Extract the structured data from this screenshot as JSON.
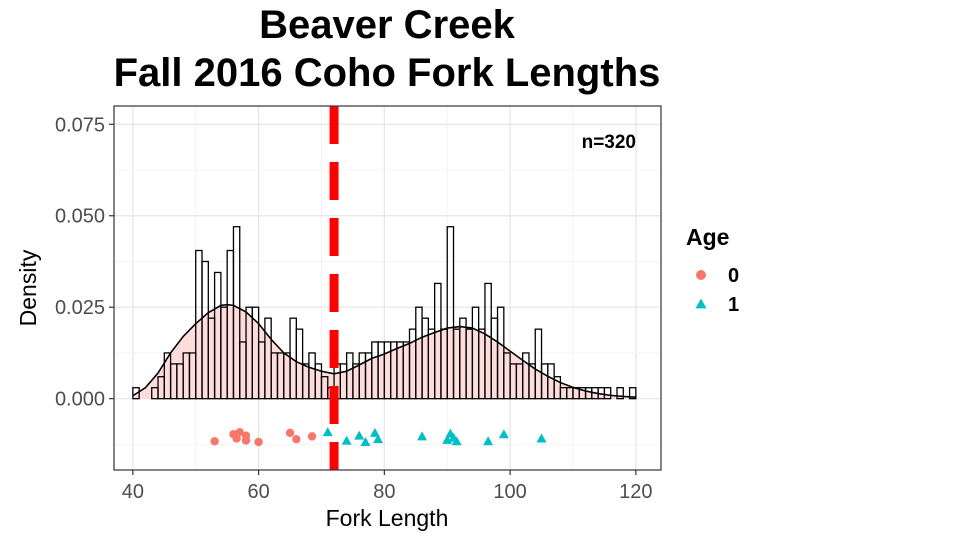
{
  "chart_data": {
    "type": "histogram",
    "title": [
      "Beaver Creek",
      "Fall 2016 Coho Fork Lengths"
    ],
    "xlabel": "Fork Length",
    "ylabel": "Density",
    "xlim": [
      37,
      124
    ],
    "ylim": [
      -0.0195,
      0.08
    ],
    "x_ticks": [
      40,
      60,
      80,
      100,
      120
    ],
    "x_tick_labels": [
      "40",
      "60",
      "80",
      "100",
      "120"
    ],
    "y_ticks": [
      0,
      0.025,
      0.05,
      0.075
    ],
    "y_tick_labels": [
      "0.000",
      "0.025",
      "0.050",
      "0.075"
    ],
    "grid": true,
    "bin_width": 1,
    "histogram": {
      "bin_starts": [
        40,
        41,
        42,
        43,
        44,
        45,
        46,
        47,
        48,
        49,
        50,
        51,
        52,
        53,
        54,
        55,
        56,
        57,
        58,
        59,
        60,
        61,
        62,
        63,
        64,
        65,
        66,
        67,
        68,
        69,
        70,
        71,
        72,
        73,
        74,
        75,
        76,
        77,
        78,
        79,
        80,
        81,
        82,
        83,
        84,
        85,
        86,
        87,
        88,
        89,
        90,
        91,
        92,
        93,
        94,
        95,
        96,
        97,
        98,
        99,
        100,
        101,
        102,
        103,
        104,
        105,
        106,
        107,
        108,
        109,
        110,
        111,
        112,
        113,
        114,
        115,
        116,
        117,
        118,
        119
      ],
      "densities": [
        0.003,
        0,
        0,
        0.003,
        0.006,
        0.0125,
        0.0095,
        0.0095,
        0.0125,
        0.0125,
        0.0405,
        0.0375,
        0.022,
        0.0345,
        0.025,
        0.0405,
        0.047,
        0.0155,
        0.025,
        0.025,
        0.0155,
        0.022,
        0.0125,
        0.0125,
        0.0125,
        0.022,
        0.019,
        0.0095,
        0.0125,
        0.0095,
        0.006,
        0.003,
        0.0095,
        0.0095,
        0.0125,
        0.0095,
        0.0125,
        0.0125,
        0.0155,
        0.0155,
        0.0155,
        0.0155,
        0.0155,
        0.0155,
        0.019,
        0.025,
        0.022,
        0.019,
        0.0315,
        0.019,
        0.047,
        0.019,
        0.022,
        0.019,
        0.025,
        0.019,
        0.0315,
        0.022,
        0.025,
        0.0125,
        0.0095,
        0.0095,
        0.0125,
        0.0095,
        0.019,
        0.0095,
        0.0095,
        0.006,
        0.003,
        0.003,
        0.003,
        0.003,
        0.003,
        0.003,
        0.003,
        0.003,
        0.0,
        0.003,
        0.0,
        0.003
      ]
    },
    "density_curve": {
      "x": [
        40,
        42,
        44,
        46,
        48,
        50,
        52,
        54,
        55,
        56,
        58,
        60,
        62,
        64,
        66,
        68,
        70,
        72,
        74,
        76,
        78,
        80,
        82,
        84,
        86,
        88,
        90,
        92,
        94,
        96,
        98,
        100,
        102,
        104,
        106,
        108,
        110,
        112,
        114,
        116,
        118,
        120
      ],
      "y": [
        0.0008,
        0.003,
        0.007,
        0.0125,
        0.017,
        0.0205,
        0.0235,
        0.0255,
        0.0257,
        0.0255,
        0.0237,
        0.0205,
        0.0162,
        0.0125,
        0.0101,
        0.0086,
        0.0075,
        0.0068,
        0.0075,
        0.0092,
        0.011,
        0.0122,
        0.0137,
        0.0151,
        0.0168,
        0.0181,
        0.0193,
        0.0197,
        0.0193,
        0.0177,
        0.0155,
        0.013,
        0.0105,
        0.0081,
        0.0061,
        0.0044,
        0.0031,
        0.0021,
        0.0014,
        0.0009,
        0.0006,
        0.0004
      ]
    },
    "vertical_line": {
      "x": 72,
      "color": "#ff0000",
      "style": "dashed"
    },
    "points": {
      "y": -0.0105,
      "age0": [
        53,
        56,
        56.5,
        57,
        58,
        58,
        60,
        65,
        66,
        68.5
      ],
      "age1": [
        71,
        74,
        76,
        77,
        78.5,
        79,
        86,
        90,
        90.5,
        91,
        91.5,
        96.5,
        99,
        105
      ]
    },
    "annotation": "n=320",
    "legend": {
      "title": "Age",
      "position": "right",
      "entries": [
        {
          "label": "0",
          "color": "#f8766d",
          "shape": "circle"
        },
        {
          "label": "1",
          "color": "#00bfc4",
          "shape": "triangle"
        }
      ]
    },
    "colors": {
      "fill_density": "#ffd6d6",
      "histogram_stroke": "#000000",
      "age0": "#f8766d",
      "age1": "#00bfc4",
      "vline": "#ff0000"
    }
  }
}
